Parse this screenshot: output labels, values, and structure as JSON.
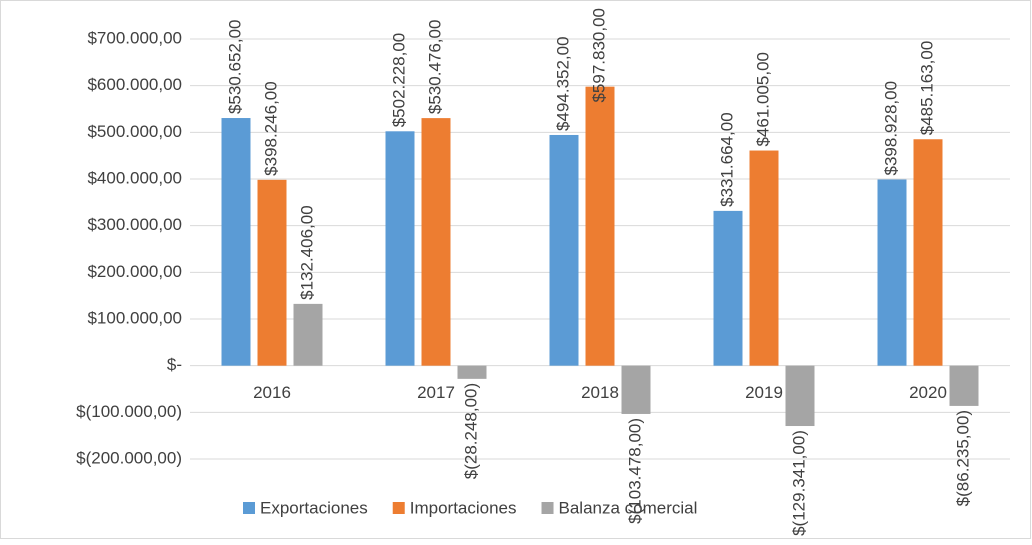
{
  "chart_data": {
    "type": "bar",
    "categories": [
      "2016",
      "2017",
      "2018",
      "2019",
      "2020"
    ],
    "series": [
      {
        "name": "Exportaciones",
        "color": "#5b9bd5",
        "values": [
          530652,
          502228,
          494352,
          331664,
          398928
        ],
        "value_labels": [
          "$530.652,00",
          "$502.228,00",
          "$494.352,00",
          "$331.664,00",
          "$398.928,00"
        ]
      },
      {
        "name": "Importaciones",
        "color": "#ed7d31",
        "values": [
          398246,
          530476,
          597830,
          461005,
          485163
        ],
        "value_labels": [
          "$398.246,00",
          "$530.476,00",
          "$597.830,00",
          "$461.005,00",
          "$485.163,00"
        ]
      },
      {
        "name": "Balanza comercial",
        "color": "#a5a5a5",
        "values": [
          132406,
          -28248,
          -103478,
          -129341,
          -86235
        ],
        "value_labels": [
          "$132.406,00",
          "$(28.248,00)",
          "$(103.478,00)",
          "$(129.341,00)",
          "$(86.235,00)"
        ]
      }
    ],
    "ylim": [
      -200000,
      700000
    ],
    "yticks": [
      {
        "value": -200000,
        "label": "$(200.000,00)"
      },
      {
        "value": -100000,
        "label": "$(100.000,00)"
      },
      {
        "value": 0,
        "label": "$-"
      },
      {
        "value": 100000,
        "label": "$100.000,00"
      },
      {
        "value": 200000,
        "label": "$200.000,00"
      },
      {
        "value": 300000,
        "label": "$300.000,00"
      },
      {
        "value": 400000,
        "label": "$400.000,00"
      },
      {
        "value": 500000,
        "label": "$500.000,00"
      },
      {
        "value": 600000,
        "label": "$600.000,00"
      },
      {
        "value": 700000,
        "label": "$700.000,00"
      }
    ],
    "grid": true,
    "legend": "bottom"
  }
}
